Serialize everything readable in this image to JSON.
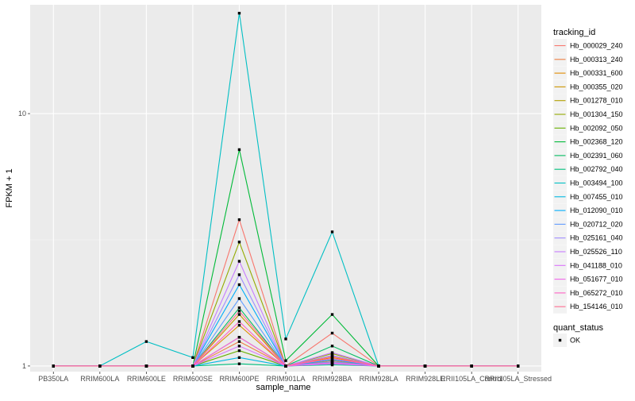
{
  "chart_data": {
    "type": "line",
    "xlabel": "sample_name",
    "ylabel": "FPKM + 1",
    "y_scale": "log10",
    "ylim": [
      0.95,
      27
    ],
    "yticks": [
      1,
      10
    ],
    "ytick_labels": [
      "1",
      "10"
    ],
    "categories": [
      "PB350LA",
      "RRIM600LA",
      "RRIM600LE",
      "RRIM600SE",
      "RRIM600PE",
      "RRIM901LA",
      "RRIM928BA",
      "RRIM928LA",
      "RRIM928LE",
      "RRII105LA_Control",
      "RRII105LA_Stressed"
    ],
    "legend_title": "tracking_id",
    "legend_position": "right",
    "shape_legend_title": "quant_status",
    "shape_legend_items": [
      "OK"
    ],
    "series": [
      {
        "name": "Hb_000029_240",
        "color": "#F8766D",
        "values": [
          1,
          1,
          1,
          1,
          3.8,
          1,
          1.35,
          1,
          1,
          1,
          1
        ]
      },
      {
        "name": "Hb_000313_240",
        "color": "#EE8043",
        "values": [
          1,
          1,
          1,
          1,
          1.25,
          1,
          1.05,
          1,
          1,
          1,
          1
        ]
      },
      {
        "name": "Hb_000331_600",
        "color": "#DF8B00",
        "values": [
          1,
          1,
          1,
          1,
          1.45,
          1,
          1.08,
          1,
          1,
          1,
          1
        ]
      },
      {
        "name": "Hb_000355_020",
        "color": "#CC9600",
        "values": [
          1,
          1,
          1,
          1,
          1.6,
          1,
          1.1,
          1,
          1,
          1,
          1
        ]
      },
      {
        "name": "Hb_001278_010",
        "color": "#B39F00",
        "values": [
          1,
          1,
          1,
          1,
          1.3,
          1,
          1.04,
          1,
          1,
          1,
          1
        ]
      },
      {
        "name": "Hb_001304_150",
        "color": "#93AA00",
        "values": [
          1,
          1,
          1,
          1,
          3.1,
          1,
          1.12,
          1,
          1,
          1,
          1
        ]
      },
      {
        "name": "Hb_002092_050",
        "color": "#68B100",
        "values": [
          1,
          1,
          1,
          1,
          1.15,
          1,
          1.03,
          1,
          1,
          1,
          1
        ]
      },
      {
        "name": "Hb_002368_120",
        "color": "#00BA38",
        "values": [
          1,
          1,
          1,
          1,
          7.2,
          1.05,
          1.6,
          1,
          1,
          1,
          1
        ]
      },
      {
        "name": "Hb_002391_060",
        "color": "#00BC60",
        "values": [
          1,
          1,
          1,
          1,
          1.7,
          1,
          1.2,
          1,
          1,
          1,
          1
        ]
      },
      {
        "name": "Hb_002792_040",
        "color": "#00BF7D",
        "values": [
          1,
          1,
          1,
          1,
          1.02,
          1,
          1.01,
          1,
          1,
          1,
          1
        ]
      },
      {
        "name": "Hb_003494_100",
        "color": "#00BFC4",
        "values": [
          1,
          1,
          1.25,
          1.08,
          25,
          1.28,
          3.4,
          1,
          1,
          1,
          1
        ]
      },
      {
        "name": "Hb_007455_010",
        "color": "#00B9E3",
        "values": [
          1,
          1,
          1,
          1,
          1.08,
          1,
          1.02,
          1,
          1,
          1,
          1
        ]
      },
      {
        "name": "Hb_012090_010",
        "color": "#00ADFA",
        "values": [
          1,
          1,
          1,
          1,
          2.1,
          1,
          1.06,
          1,
          1,
          1,
          1
        ]
      },
      {
        "name": "Hb_020712_020",
        "color": "#619CFF",
        "values": [
          1,
          1,
          1,
          1,
          1.85,
          1,
          1.04,
          1,
          1,
          1,
          1
        ]
      },
      {
        "name": "Hb_025161_040",
        "color": "#9F8CFF",
        "values": [
          1,
          1,
          1,
          1,
          2.3,
          1,
          1.1,
          1,
          1,
          1,
          1
        ]
      },
      {
        "name": "Hb_025526_110",
        "color": "#C77CFF",
        "values": [
          1,
          1,
          1,
          1,
          2.6,
          1,
          1.13,
          1,
          1,
          1,
          1
        ]
      },
      {
        "name": "Hb_041188_010",
        "color": "#DB72FB",
        "values": [
          1,
          1,
          1,
          1,
          1.2,
          1,
          1.02,
          1,
          1,
          1,
          1
        ]
      },
      {
        "name": "Hb_051677_010",
        "color": "#F066EA",
        "values": [
          1,
          1,
          1,
          1,
          1.3,
          1,
          1.03,
          1,
          1,
          1,
          1
        ]
      },
      {
        "name": "Hb_065272_010",
        "color": "#FF61C3",
        "values": [
          1,
          1,
          1,
          1,
          1.5,
          1,
          1.07,
          1,
          1,
          1,
          1
        ]
      },
      {
        "name": "Hb_154146_010",
        "color": "#FF6C91",
        "values": [
          1,
          1,
          1,
          1,
          1.65,
          1,
          1.09,
          1,
          1,
          1,
          1
        ]
      }
    ]
  }
}
